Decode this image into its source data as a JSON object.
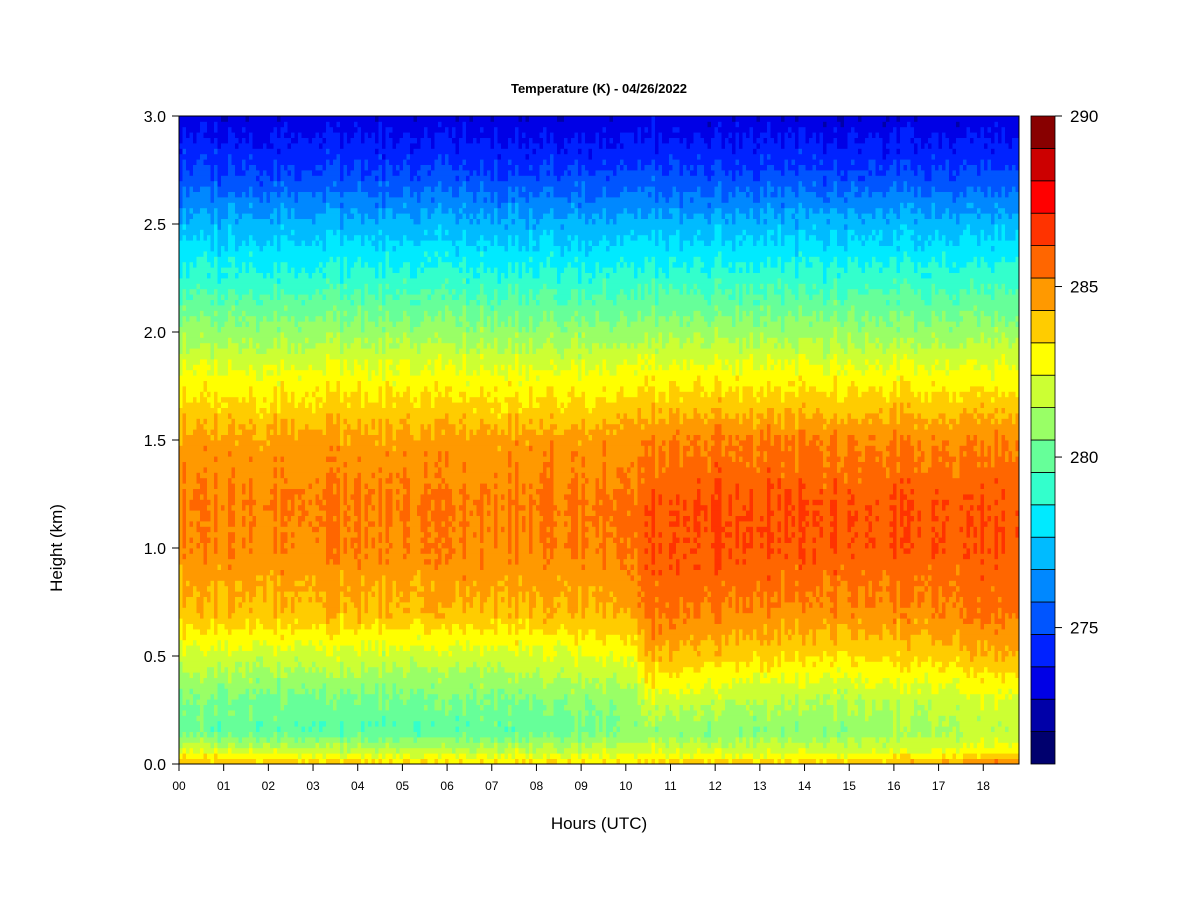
{
  "chart_data": {
    "type": "heatmap",
    "title": "Temperature (K) - 04/26/2022",
    "xlabel": "Hours (UTC)",
    "ylabel": "Height (km)",
    "x_ticks": [
      "00",
      "01",
      "02",
      "03",
      "04",
      "05",
      "06",
      "07",
      "08",
      "09",
      "10",
      "11",
      "12",
      "13",
      "14",
      "15",
      "16",
      "17",
      "18"
    ],
    "xlim": [
      0,
      18.8
    ],
    "y_ticks": [
      "0.0",
      "0.5",
      "1.0",
      "1.5",
      "2.0",
      "2.5",
      "3.0"
    ],
    "ylim": [
      0,
      3.0
    ],
    "z_unit": "K",
    "colorbar": {
      "range": [
        271,
        290
      ],
      "ticks": [
        "290",
        "285",
        "280",
        "275"
      ],
      "levels": [
        271,
        272,
        273,
        274,
        275,
        276,
        277,
        278,
        279,
        280,
        281,
        282,
        283,
        284,
        285,
        286,
        287,
        288,
        289,
        290
      ],
      "colors": [
        "#00006e",
        "#0000a8",
        "#0000e6",
        "#0022ff",
        "#0055ff",
        "#0088ff",
        "#00bbff",
        "#00eaff",
        "#33ffcc",
        "#66ff99",
        "#99ff66",
        "#ccff33",
        "#ffff00",
        "#ffcc00",
        "#ff9900",
        "#ff6600",
        "#ff3300",
        "#ff0000",
        "#cc0000",
        "#880000"
      ]
    },
    "profiles": [
      {
        "hour": 0,
        "heights": [
          0.0,
          0.05,
          0.15,
          0.3,
          0.5,
          0.7,
          1.0,
          1.2,
          1.5,
          1.8,
          2.0,
          2.2,
          2.5,
          2.75,
          3.0
        ],
        "temps": [
          285.2,
          283.2,
          280.6,
          280.9,
          282.6,
          284.7,
          285.8,
          286.0,
          285.4,
          283.3,
          281.5,
          279.8,
          277.5,
          275.0,
          273.4
        ]
      },
      {
        "hour": 3,
        "heights": [
          0.0,
          0.05,
          0.15,
          0.3,
          0.5,
          0.7,
          1.0,
          1.2,
          1.5,
          1.8,
          2.0,
          2.2,
          2.5,
          2.75,
          3.0
        ],
        "temps": [
          284.5,
          282.8,
          280.2,
          280.7,
          282.6,
          284.8,
          285.8,
          286.1,
          285.4,
          283.3,
          281.5,
          279.8,
          277.4,
          275.0,
          273.4
        ]
      },
      {
        "hour": 6,
        "heights": [
          0.0,
          0.05,
          0.15,
          0.3,
          0.5,
          0.7,
          1.0,
          1.2,
          1.5,
          1.8,
          2.0,
          2.2,
          2.5,
          2.75,
          3.0
        ],
        "temps": [
          284.2,
          282.5,
          280.2,
          280.8,
          282.4,
          284.8,
          285.9,
          286.1,
          285.4,
          283.3,
          281.5,
          279.8,
          277.4,
          275.0,
          273.3
        ]
      },
      {
        "hour": 9,
        "heights": [
          0.0,
          0.05,
          0.15,
          0.3,
          0.5,
          0.7,
          1.0,
          1.2,
          1.5,
          1.8,
          2.0,
          2.2,
          2.5,
          2.75,
          3.0
        ],
        "temps": [
          284.3,
          282.8,
          280.7,
          281.3,
          283.0,
          285.0,
          286.0,
          286.2,
          285.5,
          283.3,
          281.5,
          279.8,
          277.4,
          275.0,
          273.3
        ]
      },
      {
        "hour": 10.2,
        "heights": [
          0.0,
          0.05,
          0.15,
          0.3,
          0.5,
          0.7,
          1.0,
          1.2,
          1.5,
          1.8,
          2.0,
          2.2,
          2.5,
          2.75,
          3.0
        ],
        "temps": [
          284.2,
          282.8,
          281.1,
          281.5,
          283.2,
          285.2,
          286.1,
          286.3,
          285.6,
          283.4,
          281.5,
          279.8,
          277.4,
          275.0,
          273.3
        ]
      },
      {
        "hour": 10.5,
        "heights": [
          0.0,
          0.05,
          0.15,
          0.3,
          0.5,
          0.7,
          1.0,
          1.2,
          1.5,
          1.8,
          2.0,
          2.2,
          2.5,
          2.75,
          3.0
        ],
        "temps": [
          284.4,
          283.0,
          281.4,
          282.8,
          285.0,
          286.3,
          286.9,
          286.8,
          285.9,
          283.5,
          281.6,
          279.9,
          277.4,
          275.0,
          273.3
        ]
      },
      {
        "hour": 12,
        "heights": [
          0.0,
          0.05,
          0.15,
          0.3,
          0.5,
          0.7,
          1.0,
          1.2,
          1.5,
          1.8,
          2.0,
          2.2,
          2.5,
          2.75,
          3.0
        ],
        "temps": [
          284.6,
          282.9,
          281.1,
          282.3,
          284.4,
          286.0,
          287.0,
          287.0,
          286.0,
          283.5,
          281.6,
          279.9,
          277.4,
          275.0,
          273.3
        ]
      },
      {
        "hour": 14,
        "heights": [
          0.0,
          0.05,
          0.15,
          0.3,
          0.5,
          0.7,
          1.0,
          1.2,
          1.5,
          1.8,
          2.0,
          2.2,
          2.5,
          2.75,
          3.0
        ],
        "temps": [
          284.5,
          282.8,
          281.2,
          282.0,
          284.1,
          285.7,
          286.8,
          286.9,
          286.0,
          283.5,
          281.6,
          279.9,
          277.5,
          275.0,
          273.3
        ]
      },
      {
        "hour": 16,
        "heights": [
          0.0,
          0.05,
          0.15,
          0.3,
          0.5,
          0.7,
          1.0,
          1.2,
          1.5,
          1.8,
          2.0,
          2.2,
          2.5,
          2.75,
          3.0
        ],
        "temps": [
          285.0,
          283.0,
          281.6,
          282.2,
          284.2,
          285.7,
          286.8,
          286.9,
          285.9,
          283.4,
          281.5,
          279.9,
          277.5,
          275.0,
          273.3
        ]
      },
      {
        "hour": 18.8,
        "heights": [
          0.0,
          0.05,
          0.15,
          0.3,
          0.5,
          0.7,
          1.0,
          1.2,
          1.5,
          1.8,
          2.0,
          2.2,
          2.5,
          2.75,
          3.0
        ],
        "temps": [
          286.2,
          283.8,
          282.2,
          282.8,
          285.0,
          286.2,
          286.8,
          286.8,
          285.8,
          283.3,
          281.5,
          279.9,
          277.5,
          275.0,
          273.3
        ]
      }
    ],
    "grid": false,
    "legend": "right"
  }
}
